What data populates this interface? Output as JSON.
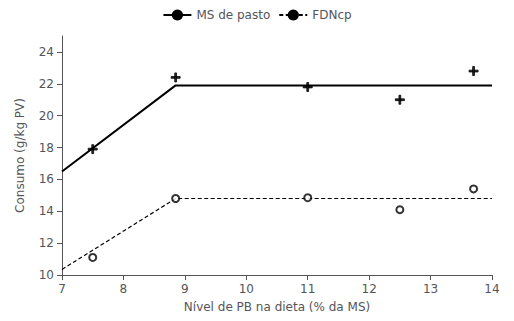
{
  "chart_data": {
    "type": "line",
    "xlabel": "Nível de PB na dieta (% da MS)",
    "ylabel": "Consumo (g/kg PV)",
    "series": [
      {
        "name": "MS de pasto",
        "type": "line",
        "line_style": "solid",
        "color": "black",
        "x": [
          7.0,
          8.85,
          14.0
        ],
        "values": [
          16.5,
          21.9,
          21.9
        ]
      },
      {
        "name": "FDNcp",
        "type": "line",
        "line_style": "dashed",
        "color": "black",
        "x": [
          7.0,
          8.85,
          14.0
        ],
        "values": [
          10.35,
          14.8,
          14.8
        ]
      },
      {
        "type": "scatter",
        "marker": "plus",
        "color": "black",
        "x": [
          7.5,
          8.85,
          11.0,
          12.5,
          13.7
        ],
        "values": [
          17.9,
          22.4,
          21.8,
          21.0,
          22.8
        ]
      },
      {
        "type": "scatter",
        "marker": "circle",
        "color": "black",
        "x": [
          7.5,
          8.85,
          11.0,
          12.5,
          13.7
        ],
        "values": [
          11.1,
          14.8,
          14.85,
          14.1,
          15.4
        ]
      }
    ],
    "xlim": [
      7.0,
      14.0
    ],
    "ylim": [
      10.0,
      25.0
    ],
    "xticks": [
      7,
      8,
      9,
      10,
      11,
      12,
      13,
      14
    ],
    "yticks": [
      10,
      12,
      14,
      16,
      18,
      20,
      22,
      24
    ],
    "grid": false,
    "legend": "top"
  }
}
